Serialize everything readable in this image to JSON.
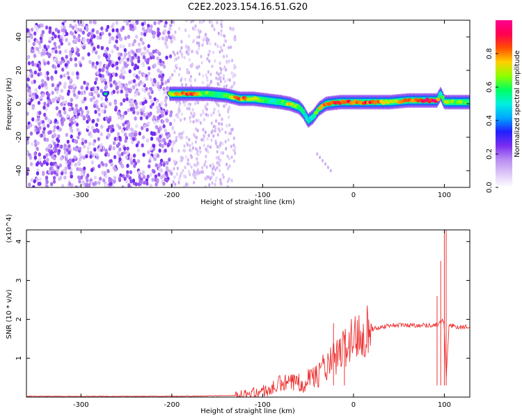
{
  "title": "C2E2.2023.154.16.51.G20",
  "chart_data": [
    {
      "type": "heatmap",
      "title": "C2E2.2023.154.16.51.G20",
      "xlabel": "Height of straight line (km)",
      "ylabel": "Frequency (Hz)",
      "xlim": [
        -360,
        128
      ],
      "ylim": [
        -50,
        50
      ],
      "xticks": [
        -300,
        -200,
        -100,
        0,
        100
      ],
      "yticks": [
        -40,
        -20,
        0,
        20,
        40
      ],
      "colorbar": {
        "label": "Normalized spectral amplitude",
        "ticks": [
          0.0,
          0.2,
          0.4,
          0.6,
          0.8
        ],
        "range": [
          0,
          1
        ],
        "colors": [
          "#ffffff",
          "#ddc8f7",
          "#b98cf2",
          "#7a2cf0",
          "#2020ff",
          "#00a8ff",
          "#00f0e0",
          "#00ff60",
          "#90ff00",
          "#ffd000",
          "#ff5000",
          "#ff0050",
          "#ff0090"
        ]
      },
      "signal_track": {
        "x": [
          -270,
          -200,
          -180,
          -160,
          -140,
          -125,
          -110,
          -95,
          -80,
          -70,
          -60,
          -55,
          -50,
          -45,
          -38,
          -30,
          -15,
          0,
          20,
          40,
          60,
          80,
          92,
          96,
          100,
          110,
          128
        ],
        "y": [
          6,
          6,
          6,
          6,
          5,
          3,
          3,
          2,
          1,
          0,
          -2,
          -5,
          -10,
          -8,
          -3,
          0,
          1,
          1,
          1,
          1,
          2,
          2,
          2,
          6,
          1,
          1,
          1
        ],
        "amplitude": [
          0.3,
          0.75,
          0.85,
          0.6,
          0.6,
          0.85,
          0.7,
          0.55,
          0.55,
          0.7,
          0.6,
          0.55,
          0.5,
          0.55,
          0.7,
          0.85,
          0.85,
          0.85,
          0.85,
          0.7,
          0.8,
          0.95,
          0.9,
          0.5,
          0.7,
          0.65,
          0.6
        ]
      },
      "noise_floor_region": [
        -360,
        -200
      ]
    },
    {
      "type": "line",
      "xlabel": "Height of straight line (km)",
      "ylabel": "SNR (10 * v/v)",
      "y_multiplier": "(x10^4)",
      "xlim": [
        -360,
        128
      ],
      "ylim": [
        0,
        4.3
      ],
      "xticks": [
        -300,
        -200,
        -100,
        0,
        100
      ],
      "yticks": [
        1,
        2,
        3,
        4
      ],
      "series": [
        {
          "color": "#ee3333",
          "x": [
            -360,
            -300,
            -200,
            -160,
            -140,
            -120,
            -110,
            -100,
            -90,
            -80,
            -70,
            -60,
            -55,
            -50,
            -45,
            -40,
            -35,
            -30,
            -25,
            -20,
            -15,
            -10,
            -5,
            0,
            5,
            10,
            20,
            30,
            40,
            50,
            60,
            70,
            80,
            90,
            95,
            98,
            100,
            102,
            105,
            110,
            115,
            120,
            128
          ],
          "y": [
            0.02,
            0.02,
            0.02,
            0.03,
            0.04,
            0.05,
            0.1,
            0.15,
            0.2,
            0.35,
            0.35,
            0.4,
            0.35,
            0.5,
            0.6,
            0.5,
            0.8,
            0.7,
            0.9,
            1.0,
            1.1,
            1.3,
            1.4,
            1.5,
            1.6,
            1.7,
            1.75,
            1.8,
            1.85,
            1.85,
            1.85,
            1.85,
            1.85,
            1.85,
            1.9,
            2.0,
            1.8,
            0.5,
            1.8,
            1.85,
            1.8,
            1.8,
            1.8
          ]
        }
      ],
      "spikes": {
        "x": [
          -60,
          -22,
          -10,
          92,
          96,
          100,
          102
        ],
        "y": [
          0.6,
          1.9,
          1.6,
          2.6,
          3.5,
          4.3,
          4.3
        ]
      }
    }
  ]
}
